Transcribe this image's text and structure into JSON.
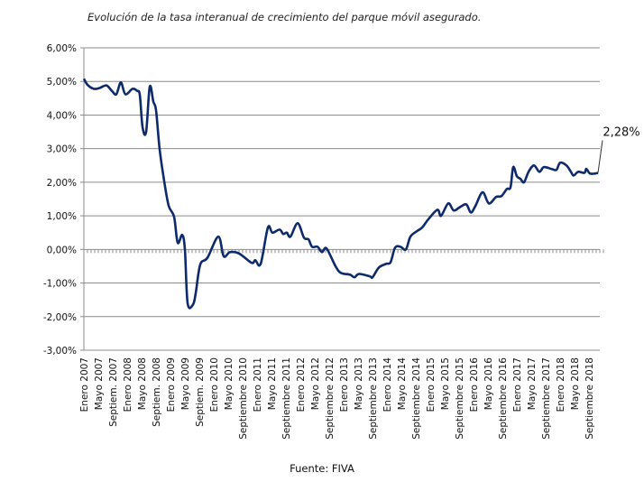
{
  "chart_data": {
    "type": "line",
    "title": "Evolución de la tasa interanual de crecimiento del parque móvil asegurado.",
    "source": "Fuente: FIVA",
    "xlabel": "",
    "ylabel": "",
    "ylim": [
      -3,
      6
    ],
    "yticks": [
      "6,00%",
      "5,00%",
      "4,00%",
      "3,00%",
      "2,00%",
      "1,00%",
      "0,00%",
      "-1,00%",
      "-2,00%",
      "-3,00%"
    ],
    "ytick_values": [
      6,
      5,
      4,
      3,
      2,
      1,
      0,
      -1,
      -2,
      -3
    ],
    "x_unit": "months since Enero 2007",
    "xlim": [
      0,
      143
    ],
    "xtick_step_months": 4,
    "xticks": [
      "Enero 2007",
      "Mayo 2007",
      "Septiem. 2007",
      "Enero 2008",
      "Mayo 2008",
      "Septiem. 2008",
      "Enero 2009",
      "Mayo 2009",
      "Septiem. 2009",
      "Enero 2010",
      "Mayo 2010",
      "Septiembre 2010",
      "Enero 2011",
      "Mayo 2011",
      "Septiembre 2011",
      "Enero 2012",
      "Mayo 2012",
      "Septiembre 2012",
      "Enero 2013",
      "Mayo 2013",
      "Septiembre 2013",
      "Enero 2014",
      "Mayo 2014",
      "Septiembre 2014",
      "Enero 2015",
      "Mayo 2015",
      "Septiembre 2015",
      "Enero 2016",
      "Mayo 2016",
      "Septiembre 2016",
      "Enero 2017",
      "Mayo 2017",
      "Septiembre 2017",
      "Enero 2018",
      "Mayo 2018",
      "Septiembre 2018"
    ],
    "grid": true,
    "series": [
      {
        "name": "Tasa interanual",
        "color": "#0d2a6b",
        "points": [
          [
            0,
            5.08
          ],
          [
            1,
            4.9
          ],
          [
            2.75,
            4.78
          ],
          [
            4.25,
            4.8
          ],
          [
            6.25,
            4.88
          ],
          [
            7.75,
            4.72
          ],
          [
            9,
            4.62
          ],
          [
            10.25,
            4.97
          ],
          [
            11.5,
            4.62
          ],
          [
            13.5,
            4.78
          ],
          [
            14.75,
            4.72
          ],
          [
            15.5,
            4.6
          ],
          [
            16.25,
            3.65
          ],
          [
            17.25,
            3.5
          ],
          [
            18.25,
            4.84
          ],
          [
            19.25,
            4.4
          ],
          [
            20,
            4.14
          ],
          [
            21,
            2.98
          ],
          [
            22.25,
            2.04
          ],
          [
            23.5,
            1.3
          ],
          [
            25,
            0.97
          ],
          [
            26,
            0.2
          ],
          [
            27.25,
            0.43
          ],
          [
            28,
            0.0
          ],
          [
            28.75,
            -1.6
          ],
          [
            30.25,
            -1.64
          ],
          [
            31,
            -1.3
          ],
          [
            32.25,
            -0.45
          ],
          [
            34.25,
            -0.25
          ],
          [
            37.25,
            0.38
          ],
          [
            38.75,
            -0.2
          ],
          [
            40.5,
            -0.08
          ],
          [
            43,
            -0.12
          ],
          [
            46.5,
            -0.4
          ],
          [
            47.5,
            -0.32
          ],
          [
            49,
            -0.43
          ],
          [
            51,
            0.65
          ],
          [
            52.25,
            0.5
          ],
          [
            54.25,
            0.59
          ],
          [
            55.25,
            0.46
          ],
          [
            56.25,
            0.5
          ],
          [
            57.25,
            0.38
          ],
          [
            59.25,
            0.78
          ],
          [
            61,
            0.35
          ],
          [
            62.25,
            0.3
          ],
          [
            63.25,
            0.08
          ],
          [
            64.75,
            0.08
          ],
          [
            66,
            -0.08
          ],
          [
            67.25,
            0.03
          ],
          [
            69.75,
            -0.5
          ],
          [
            71.25,
            -0.7
          ],
          [
            73.75,
            -0.75
          ],
          [
            75,
            -0.83
          ],
          [
            76.25,
            -0.73
          ],
          [
            79.25,
            -0.8
          ],
          [
            80,
            -0.83
          ],
          [
            81.75,
            -0.54
          ],
          [
            83.75,
            -0.43
          ],
          [
            85,
            -0.38
          ],
          [
            86.25,
            0.05
          ],
          [
            87.75,
            0.08
          ],
          [
            89.25,
            0.0
          ],
          [
            90.5,
            0.38
          ],
          [
            92.25,
            0.54
          ],
          [
            93.75,
            0.65
          ],
          [
            95.5,
            0.9
          ],
          [
            98,
            1.18
          ],
          [
            99,
            1.0
          ],
          [
            101,
            1.37
          ],
          [
            102.5,
            1.16
          ],
          [
            104.25,
            1.26
          ],
          [
            106,
            1.34
          ],
          [
            107.25,
            1.1
          ],
          [
            108.5,
            1.29
          ],
          [
            110.5,
            1.7
          ],
          [
            112.25,
            1.37
          ],
          [
            114.25,
            1.56
          ],
          [
            115.75,
            1.59
          ],
          [
            117.25,
            1.8
          ],
          [
            118.25,
            1.85
          ],
          [
            119,
            2.45
          ],
          [
            120,
            2.18
          ],
          [
            121,
            2.1
          ],
          [
            122,
            2.0
          ],
          [
            123.25,
            2.31
          ],
          [
            124.75,
            2.5
          ],
          [
            126.25,
            2.31
          ],
          [
            127.5,
            2.45
          ],
          [
            129.75,
            2.39
          ],
          [
            131,
            2.37
          ],
          [
            132,
            2.58
          ],
          [
            133.75,
            2.5
          ],
          [
            135,
            2.31
          ],
          [
            135.75,
            2.2
          ],
          [
            137,
            2.31
          ],
          [
            138.75,
            2.28
          ],
          [
            139.25,
            2.4
          ],
          [
            140.25,
            2.26
          ],
          [
            141.75,
            2.26
          ],
          [
            142.5,
            2.28
          ]
        ]
      }
    ],
    "annotations": [
      {
        "text": "2,28%",
        "x": 142.5,
        "y": 2.28
      }
    ],
    "legend": "none"
  }
}
